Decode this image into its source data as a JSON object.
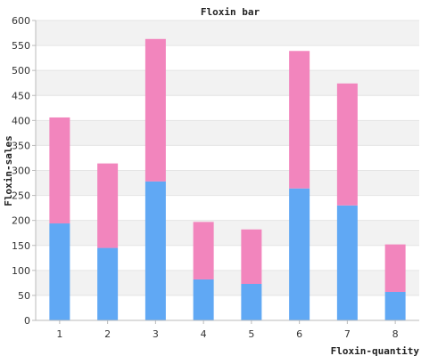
{
  "chart_data": {
    "type": "bar",
    "stacked": true,
    "title": "Floxin bar",
    "xlabel": "Floxin-quantity",
    "ylabel": "Floxin-sales",
    "categories": [
      "1",
      "2",
      "3",
      "4",
      "5",
      "6",
      "7",
      "8"
    ],
    "series": [
      {
        "color": "#60a8f4",
        "values": [
          194,
          145,
          278,
          82,
          73,
          264,
          230,
          57
        ]
      },
      {
        "color": "#f285bd",
        "values": [
          212,
          169,
          285,
          115,
          109,
          275,
          244,
          95
        ]
      }
    ],
    "ylim": [
      0,
      600
    ],
    "yticks": [
      "0",
      "50",
      "100",
      "150",
      "200",
      "250",
      "300",
      "350",
      "400",
      "450",
      "500",
      "550",
      "600"
    ],
    "grid": true,
    "band_color": "#f2f2f2"
  }
}
